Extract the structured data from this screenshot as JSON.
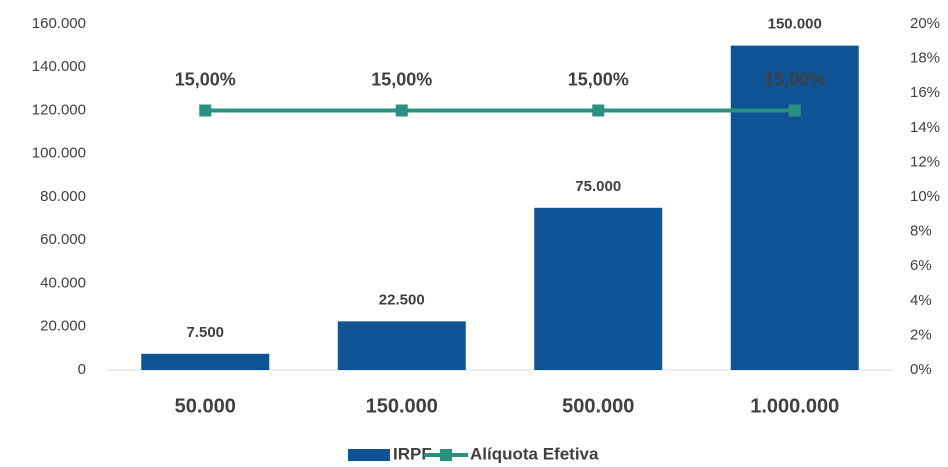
{
  "chart_data": {
    "type": "bar",
    "categories": [
      "50.000",
      "150.000",
      "500.000",
      "1.000.000"
    ],
    "series": [
      {
        "name": "IRPF",
        "type": "bar",
        "color": "#0e5494",
        "values": [
          7500,
          22500,
          75000,
          150000
        ],
        "value_labels": [
          "7.500",
          "22.500",
          "75.000",
          "150.000"
        ]
      },
      {
        "name": "Alíquota Efetiva",
        "type": "line",
        "axis": "y2",
        "color": "#2a9080",
        "values": [
          15,
          15,
          15,
          15
        ],
        "value_labels": [
          "15,00%",
          "15,00%",
          "15,00%",
          "15,00%"
        ]
      }
    ],
    "ylim": [
      0,
      160000
    ],
    "yticks": [
      0,
      {
        "value": 20000,
        "label": "20.000"
      },
      {
        "value": 40000,
        "label": "40.000"
      },
      {
        "value": 60000,
        "label": "60.000"
      },
      {
        "value": 80000,
        "label": "80.000"
      },
      {
        "value": 100000,
        "label": "100.000"
      },
      {
        "value": 120000,
        "label": "120.000"
      },
      {
        "value": 140000,
        "label": "140.000"
      },
      {
        "value": 160000,
        "label": "160.000"
      }
    ],
    "y2lim": [
      0,
      20
    ],
    "y2ticks": [
      {
        "value": 0,
        "label": "0%"
      },
      {
        "value": 2,
        "label": "2%"
      },
      {
        "value": 4,
        "label": "4%"
      },
      {
        "value": 6,
        "label": "6%"
      },
      {
        "value": 8,
        "label": "8%"
      },
      {
        "value": 10,
        "label": "10%"
      },
      {
        "value": 12,
        "label": "12%"
      },
      {
        "value": 14,
        "label": "14%"
      },
      {
        "value": 16,
        "label": "16%"
      },
      {
        "value": 18,
        "label": "18%"
      },
      {
        "value": 20,
        "label": "20%"
      }
    ],
    "grid": false,
    "legend": "bottom"
  }
}
